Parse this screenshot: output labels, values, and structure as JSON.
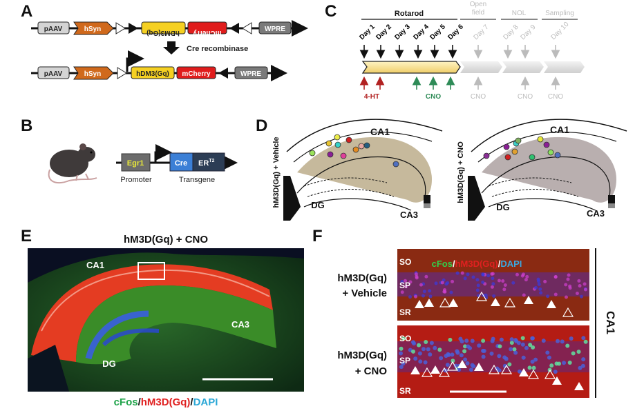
{
  "panels": {
    "A": {
      "label": "A",
      "top_row": [
        "pAAV",
        "hSyn",
        "hDM3(Gq)",
        "mCherry",
        "WPRE"
      ],
      "step_label": "Cre recombinase",
      "bottom_row": [
        "pAAV",
        "hSyn",
        "hDM3(Gq)",
        "mCherry",
        "WPRE"
      ]
    },
    "B": {
      "label": "B",
      "promoter_box": "Egr1",
      "cre_box": "Cre",
      "er_box": "ER",
      "er_superscript": "T2",
      "promoter_label": "Promoter",
      "transgene_label": "Transgene"
    },
    "C": {
      "label": "C",
      "phases": [
        "Rotarod",
        "Open field",
        "NOL",
        "Sampling"
      ],
      "days": [
        "Day 1",
        "Day 2",
        "Day 3",
        "Day 4",
        "Day 5",
        "Day 6",
        "Day 7",
        "Day 8",
        "Day 9",
        "Day 10"
      ],
      "treat_4ht": "4-HT",
      "treat_cno": "CNO",
      "treat_cno_later": [
        "CNO",
        "CNO",
        "CNO"
      ],
      "colors": {
        "active": "#000000",
        "inactive": "#bbbbbb",
        "4ht": "#b22222",
        "cno": "#2e8b57",
        "bar": "#f7e4a0"
      }
    },
    "D": {
      "label": "D",
      "left_condition": "hM3D(Gq) + Vehicle",
      "right_condition": "hM3D(Gq) + CNO",
      "regions": {
        "ca1": "CA1",
        "dg": "DG",
        "ca3": "CA3"
      }
    },
    "E": {
      "label": "E",
      "title": "hM3D(Gq) + CNO",
      "regions": {
        "ca1": "CA1",
        "ca3": "CA3",
        "dg": "DG"
      },
      "legend": {
        "cfos": "cFos",
        "sep1": "/",
        "hm3d": "hM3D(Gq)",
        "sep2": "/",
        "dapi": "DAPI"
      },
      "colors": {
        "cfos": "#1fa34a",
        "hm3d": "#e02020",
        "dapi": "#2aa7d6"
      }
    },
    "F": {
      "label": "F",
      "row1": {
        "line1": "hM3D(Gq)",
        "line2": "+ Vehicle"
      },
      "row2": {
        "line1": "hM3D(Gq)",
        "line2": "+ CNO"
      },
      "layers": [
        "SO",
        "SP",
        "SR"
      ],
      "legend": {
        "cfos": "cFos",
        "sep1": "/",
        "hm3d": "hM3D(Gq)",
        "sep2": "/",
        "dapi": "DAPI"
      },
      "side_label": "CA1"
    }
  }
}
